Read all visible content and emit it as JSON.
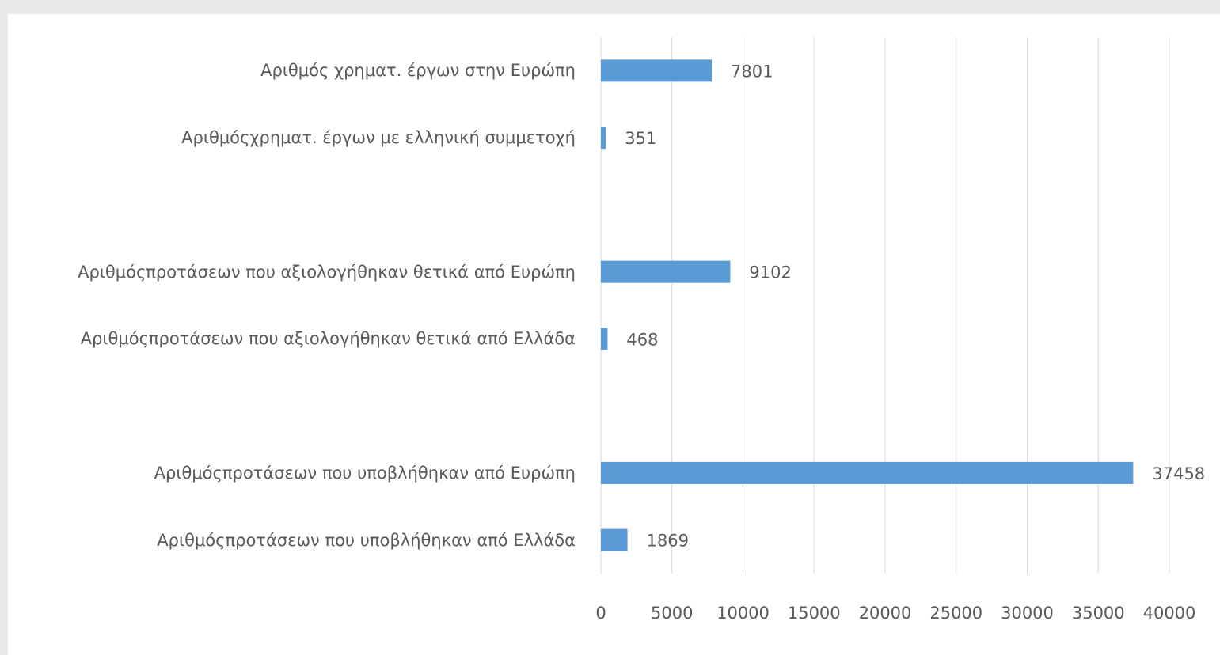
{
  "chart_data": {
    "type": "bar",
    "orientation": "horizontal",
    "categories": [
      "Αριθμός χρηματ. έργων στην Ευρώπη",
      "Αριθμόςχρηματ. έργων με ελληνική συμμετοχή",
      null,
      "Αριθμόςπροτάσεων που αξιολογήθηκαν θετικά από Ευρώπη",
      "Αριθμόςπροτάσεων που αξιολογήθηκαν θετικά από Ελλάδα",
      null,
      "Αριθμόςπροτάσεων που υποβλήθηκαν από Ευρώπη",
      "Αριθμόςπροτάσεων που υποβλήθηκαν από Ελλάδα"
    ],
    "values": [
      7801,
      351,
      null,
      9102,
      468,
      null,
      37458,
      1869
    ],
    "color": "#5b9bd5",
    "xlim": [
      0,
      40000
    ],
    "xticks": [
      0,
      5000,
      10000,
      15000,
      20000,
      25000,
      30000,
      35000,
      40000
    ],
    "grid": true
  }
}
